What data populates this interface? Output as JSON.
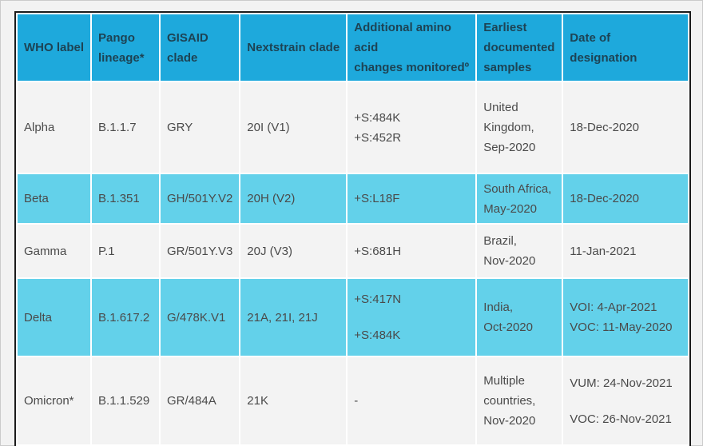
{
  "colors": {
    "page_bg": "#f2f2f2",
    "header_bg": "#1ea9dc",
    "header_text": "#1d4354",
    "row_shaded_bg": "#63d1ea",
    "row_plain_bg": "#f3f3f3",
    "body_text": "#4a4a4a",
    "table_border": "#1b1b1b",
    "gap": "#ffffff"
  },
  "table": {
    "columns": [
      {
        "id": "who-label",
        "label": "WHO label",
        "lines": [
          "WHO label"
        ]
      },
      {
        "id": "pango-lineage",
        "label": "Pango lineage*",
        "lines": [
          "Pango",
          "lineage*"
        ]
      },
      {
        "id": "gisaid-clade",
        "label": "GISAID clade",
        "lines": [
          "GISAID",
          "clade"
        ]
      },
      {
        "id": "nextstrain-clade",
        "label": "Nextstrain clade",
        "lines": [
          "Nextstrain clade"
        ]
      },
      {
        "id": "amino-changes",
        "label": "Additional amino acid changes monitoredº",
        "lines": [
          "Additional amino",
          "acid",
          "changes monitoredº"
        ]
      },
      {
        "id": "earliest-samples",
        "label": "Earliest documented samples",
        "lines": [
          "Earliest",
          "documented",
          "samples"
        ]
      },
      {
        "id": "designation-date",
        "label": "Date of designation",
        "lines": [
          "Date of",
          "designation"
        ]
      }
    ],
    "rows": [
      {
        "shaded": false,
        "cells": [
          [
            "Alpha"
          ],
          [
            "B.1.1.7"
          ],
          [
            "GRY"
          ],
          [
            "20I (V1)"
          ],
          [
            "+S:484K",
            "+S:452R"
          ],
          [
            "United",
            "Kingdom,",
            "Sep-2020"
          ],
          [
            "18-Dec-2020"
          ]
        ]
      },
      {
        "shaded": true,
        "cells": [
          [
            "Beta"
          ],
          [
            "B.1.351"
          ],
          [
            "GH/501Y.V2"
          ],
          [
            "20H (V2)"
          ],
          [
            "+S:L18F"
          ],
          [
            "South Africa,",
            "May-2020"
          ],
          [
            "18-Dec-2020"
          ]
        ]
      },
      {
        "shaded": false,
        "cells": [
          [
            "Gamma"
          ],
          [
            "P.1"
          ],
          [
            "GR/501Y.V3"
          ],
          [
            "20J (V3)"
          ],
          [
            "+S:681H"
          ],
          [
            "Brazil,",
            "Nov-2020"
          ],
          [
            "11-Jan-2021"
          ]
        ]
      },
      {
        "shaded": true,
        "cells": [
          [
            "Delta"
          ],
          [
            "B.1.617.2"
          ],
          [
            "G/478K.V1"
          ],
          [
            "21A, 21I, 21J"
          ],
          [
            "+S:417N",
            "",
            "+S:484K"
          ],
          [
            "India,",
            "Oct-2020"
          ],
          [
            "VOI: 4-Apr-2021",
            "VOC: 11-May-2020"
          ]
        ]
      },
      {
        "shaded": false,
        "cells": [
          [
            "Omicron*"
          ],
          [
            "B.1.1.529"
          ],
          [
            "GR/484A"
          ],
          [
            "21K"
          ],
          [
            "-"
          ],
          [
            "Multiple",
            "countries,",
            "Nov-2020"
          ],
          [
            "VUM: 24-Nov-2021",
            "",
            "VOC: 26-Nov-2021"
          ]
        ]
      }
    ]
  }
}
